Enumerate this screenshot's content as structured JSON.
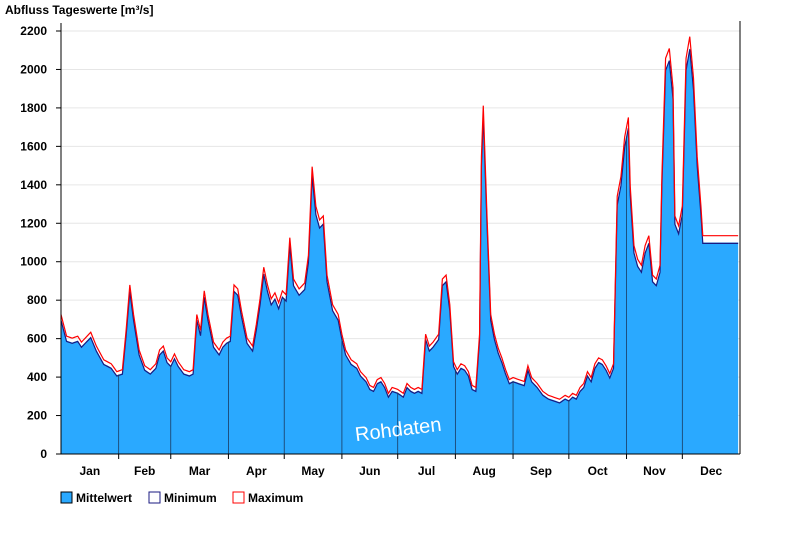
{
  "chart_data": {
    "type": "area",
    "title": "Abfluss Tageswerte [m³/s]",
    "ylim": [
      0,
      2200
    ],
    "yticks": [
      0,
      200,
      400,
      600,
      800,
      1000,
      1200,
      1400,
      1600,
      1800,
      2000,
      2200
    ],
    "ytick_labels": [
      "0",
      "200",
      "400",
      "600",
      "800",
      "1000",
      "1200",
      "1400",
      "1600",
      "1800",
      "2000",
      "2200"
    ],
    "months": [
      "Jan",
      "Feb",
      "Mar",
      "Apr",
      "May",
      "Jun",
      "Jul",
      "Aug",
      "Sep",
      "Oct",
      "Nov",
      "Dec"
    ],
    "month_days": [
      31,
      28,
      31,
      30,
      31,
      30,
      31,
      31,
      30,
      31,
      30,
      31
    ],
    "grid": true,
    "legend_position": "bottom-left",
    "annotation": "Rohdaten",
    "colors": {
      "mean_fill": "#2aa9ff",
      "minimum": "#1a1a80",
      "maximum": "#ff0000",
      "grid": "#e6e6e6"
    },
    "series": [
      {
        "name": "Mittelwert",
        "anchors": [
          [
            0,
            700
          ],
          [
            3,
            590
          ],
          [
            6,
            580
          ],
          [
            9,
            590
          ],
          [
            11,
            560
          ],
          [
            13,
            580
          ],
          [
            16,
            610
          ],
          [
            19,
            540
          ],
          [
            23,
            470
          ],
          [
            27,
            450
          ],
          [
            30,
            410
          ],
          [
            33,
            420
          ],
          [
            35,
            620
          ],
          [
            37,
            850
          ],
          [
            39,
            700
          ],
          [
            42,
            520
          ],
          [
            45,
            440
          ],
          [
            48,
            420
          ],
          [
            51,
            450
          ],
          [
            53,
            520
          ],
          [
            55,
            540
          ],
          [
            57,
            480
          ],
          [
            59,
            460
          ],
          [
            61,
            500
          ],
          [
            63,
            460
          ],
          [
            66,
            420
          ],
          [
            69,
            410
          ],
          [
            71,
            420
          ],
          [
            73,
            700
          ],
          [
            75,
            620
          ],
          [
            77,
            820
          ],
          [
            79,
            700
          ],
          [
            82,
            560
          ],
          [
            85,
            520
          ],
          [
            87,
            560
          ],
          [
            89,
            580
          ],
          [
            91,
            590
          ],
          [
            93,
            850
          ],
          [
            95,
            830
          ],
          [
            97,
            720
          ],
          [
            100,
            580
          ],
          [
            103,
            540
          ],
          [
            105,
            650
          ],
          [
            107,
            780
          ],
          [
            109,
            940
          ],
          [
            111,
            850
          ],
          [
            113,
            780
          ],
          [
            115,
            810
          ],
          [
            117,
            760
          ],
          [
            119,
            820
          ],
          [
            121,
            800
          ],
          [
            123,
            1090
          ],
          [
            125,
            880
          ],
          [
            128,
            830
          ],
          [
            131,
            860
          ],
          [
            133,
            1000
          ],
          [
            135,
            1450
          ],
          [
            137,
            1250
          ],
          [
            139,
            1180
          ],
          [
            141,
            1200
          ],
          [
            143,
            900
          ],
          [
            146,
            750
          ],
          [
            149,
            700
          ],
          [
            151,
            600
          ],
          [
            153,
            520
          ],
          [
            156,
            470
          ],
          [
            159,
            450
          ],
          [
            161,
            410
          ],
          [
            164,
            380
          ],
          [
            166,
            340
          ],
          [
            168,
            330
          ],
          [
            170,
            370
          ],
          [
            172,
            380
          ],
          [
            174,
            350
          ],
          [
            176,
            300
          ],
          [
            178,
            330
          ],
          [
            181,
            320
          ],
          [
            184,
            300
          ],
          [
            186,
            350
          ],
          [
            188,
            330
          ],
          [
            190,
            320
          ],
          [
            192,
            330
          ],
          [
            194,
            320
          ],
          [
            196,
            600
          ],
          [
            198,
            540
          ],
          [
            200,
            560
          ],
          [
            203,
            600
          ],
          [
            205,
            880
          ],
          [
            207,
            900
          ],
          [
            209,
            750
          ],
          [
            211,
            460
          ],
          [
            213,
            420
          ],
          [
            215,
            450
          ],
          [
            217,
            440
          ],
          [
            219,
            410
          ],
          [
            221,
            340
          ],
          [
            223,
            330
          ],
          [
            225,
            600
          ],
          [
            226,
            1500
          ],
          [
            227,
            1760
          ],
          [
            229,
            1200
          ],
          [
            231,
            700
          ],
          [
            233,
            600
          ],
          [
            235,
            530
          ],
          [
            237,
            480
          ],
          [
            239,
            420
          ],
          [
            241,
            370
          ],
          [
            243,
            380
          ],
          [
            246,
            370
          ],
          [
            249,
            360
          ],
          [
            251,
            440
          ],
          [
            253,
            380
          ],
          [
            256,
            350
          ],
          [
            259,
            310
          ],
          [
            262,
            290
          ],
          [
            265,
            280
          ],
          [
            268,
            270
          ],
          [
            271,
            290
          ],
          [
            273,
            280
          ],
          [
            275,
            300
          ],
          [
            277,
            290
          ],
          [
            279,
            330
          ],
          [
            281,
            350
          ],
          [
            283,
            410
          ],
          [
            285,
            380
          ],
          [
            287,
            450
          ],
          [
            289,
            480
          ],
          [
            291,
            470
          ],
          [
            293,
            440
          ],
          [
            295,
            400
          ],
          [
            297,
            450
          ],
          [
            299,
            1300
          ],
          [
            301,
            1400
          ],
          [
            303,
            1600
          ],
          [
            305,
            1700
          ],
          [
            306,
            1350
          ],
          [
            308,
            1050
          ],
          [
            310,
            980
          ],
          [
            312,
            950
          ],
          [
            314,
            1050
          ],
          [
            316,
            1100
          ],
          [
            318,
            900
          ],
          [
            320,
            880
          ],
          [
            322,
            950
          ],
          [
            323,
            1400
          ],
          [
            325,
            2000
          ],
          [
            327,
            2050
          ],
          [
            329,
            1850
          ],
          [
            330,
            1200
          ],
          [
            332,
            1150
          ],
          [
            334,
            1250
          ],
          [
            336,
            2000
          ],
          [
            338,
            2110
          ],
          [
            340,
            1900
          ],
          [
            342,
            1500
          ],
          [
            344,
            1250
          ],
          [
            345,
            1100
          ],
          [
            346,
            1100
          ]
        ],
        "show_in_legend": true
      },
      {
        "name": "Minimum",
        "show_in_legend": true
      },
      {
        "name": "Maximum",
        "show_in_legend": true
      }
    ]
  }
}
